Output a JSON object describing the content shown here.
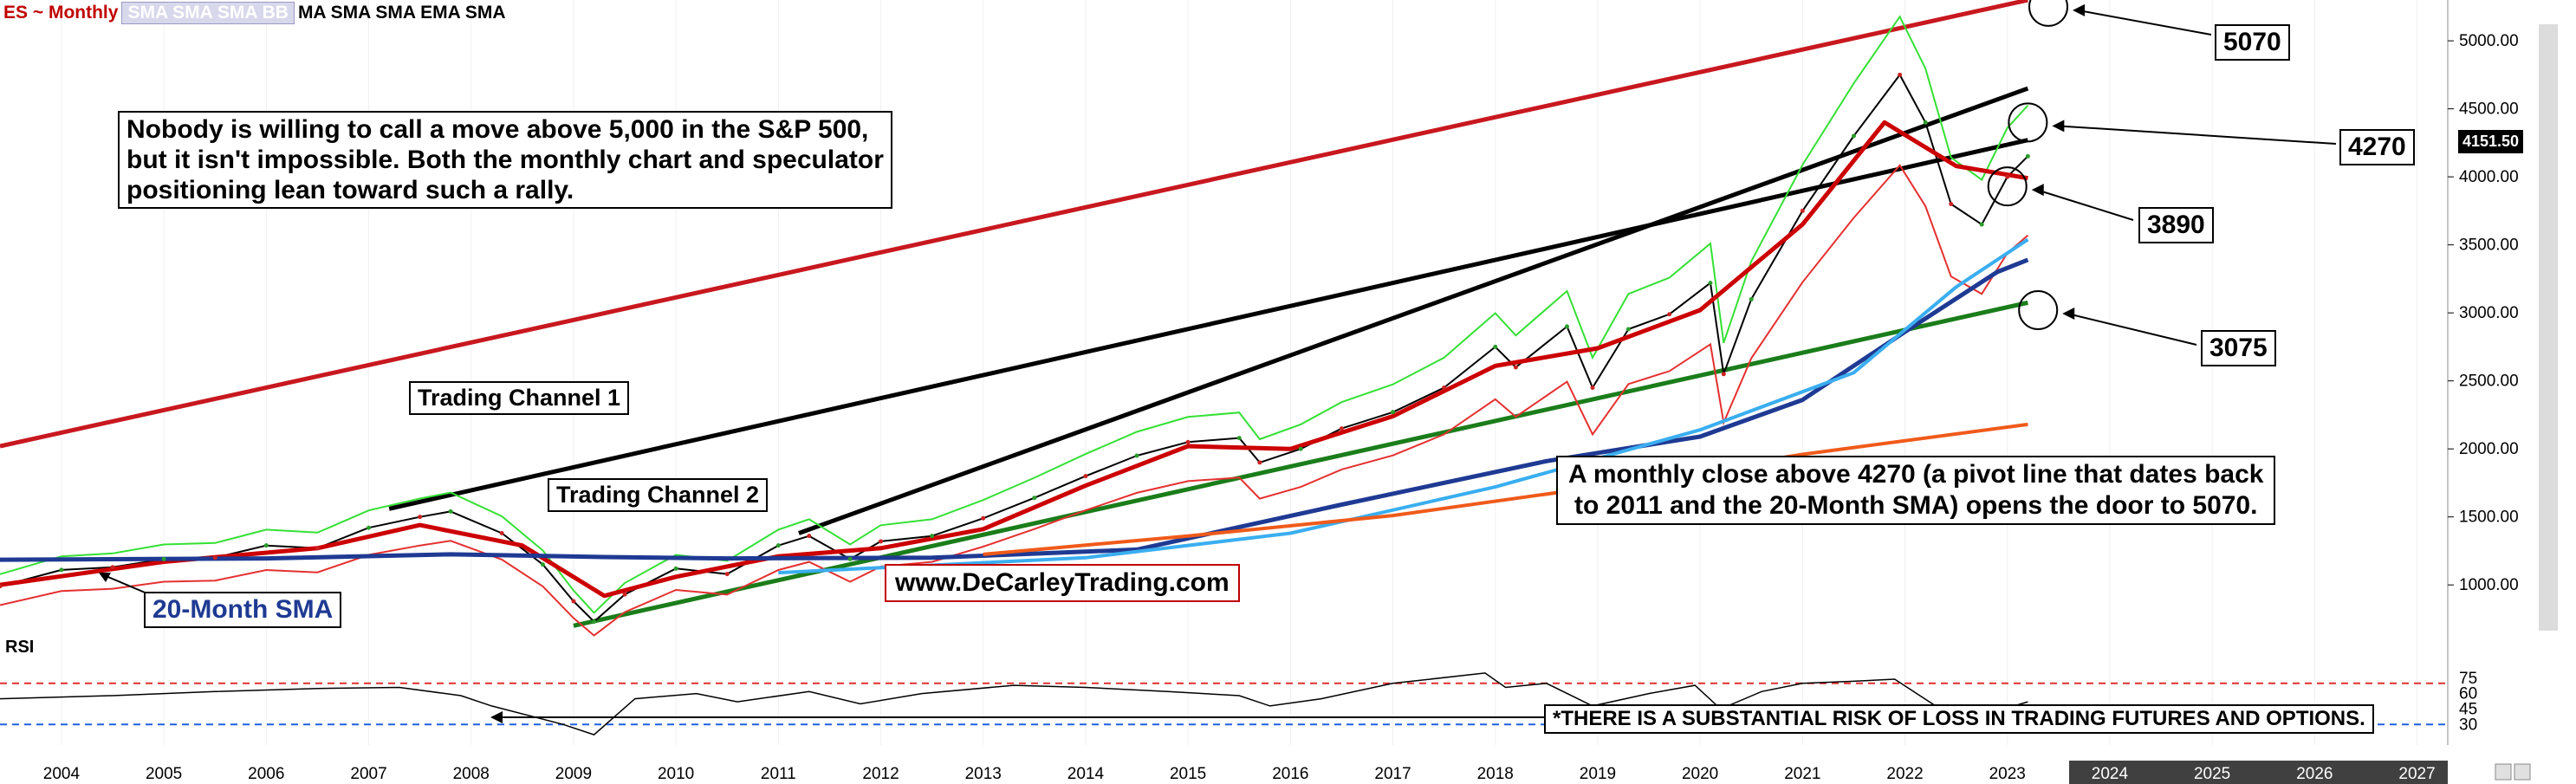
{
  "header": {
    "symbol": "ES ~ Monthly",
    "legend_faded": "SMA SMA SMA BB",
    "legend_indicators": "MA SMA SMA EMA SMA"
  },
  "annotations": {
    "intro": [
      "Nobody is willing to call a move above 5,000 in the S&P 500,",
      "but it isn't impossible. Both the monthly chart and speculator",
      "positioning lean toward such a rally."
    ],
    "channel1": "Trading Channel 1",
    "channel2": "Trading Channel 2",
    "target_5070": "5070",
    "target_4270": "4270",
    "target_3890": "3890",
    "target_3075": "3075",
    "pivot_note": [
      "A monthly close above 4270 (a pivot line that dates back",
      "to 2011 and the 20-Month SMA) opens the door to 5070."
    ],
    "website": "www.DeCarleyTrading.com",
    "sma_label": "20-Month SMA",
    "risk": "*THERE IS A SUBSTANTIAL RISK OF LOSS IN TRADING FUTURES AND OPTIONS.",
    "rsi": "RSI",
    "last_price": "4151.50"
  },
  "colors": {
    "symbol": "#c00000",
    "upper_red_line": "#c8181f",
    "black_lines": "#000000",
    "green_channel": "#1a7d1a",
    "orange_line": "#f05a1a",
    "sma20_blue": "#1f3a93",
    "light_blue": "#3aaef0",
    "green_band": "#35e035",
    "red_band": "#e53030",
    "background": "#ffffff"
  },
  "chart_data": {
    "type": "line",
    "title": "ES ~ Monthly",
    "price_axis": {
      "ylim": [
        600,
        5300
      ],
      "ticks": [
        1000,
        1500,
        2000,
        2500,
        3000,
        3500,
        4000,
        4500,
        5000
      ],
      "tick_labels": [
        "1000.00",
        "1500.00",
        "2000.00",
        "2500.00",
        "3000.00",
        "3500.00",
        "4000.00",
        "4500.00",
        "5000.00"
      ]
    },
    "time_axis": {
      "xlim": [
        2003.4,
        2027.3
      ],
      "years": [
        "2004",
        "2005",
        "2006",
        "2007",
        "2008",
        "2009",
        "2010",
        "2011",
        "2012",
        "2013",
        "2014",
        "2015",
        "2016",
        "2017",
        "2018",
        "2019",
        "2020",
        "2021",
        "2022",
        "2023",
        "2024",
        "2025",
        "2026",
        "2027"
      ]
    },
    "rsi_axis": {
      "ylim": [
        10,
        90
      ],
      "ticks": [
        30,
        45,
        60,
        75
      ],
      "tick_labels": [
        "30",
        "45",
        "60",
        "75"
      ],
      "upper": 70,
      "lower": 30
    },
    "series": [
      {
        "name": "ES ~ Monthly",
        "x": [
          2003.4,
          2004.0,
          2004.5,
          2005.0,
          2005.5,
          2006.0,
          2006.5,
          2007.0,
          2007.5,
          2007.8,
          2008.3,
          2008.7,
          2009.0,
          2009.2,
          2009.5,
          2010.0,
          2010.5,
          2011.0,
          2011.3,
          2011.7,
          2012.0,
          2012.5,
          2013.0,
          2013.5,
          2014.0,
          2014.5,
          2015.0,
          2015.5,
          2015.7,
          2016.1,
          2016.5,
          2017.0,
          2017.5,
          2018.0,
          2018.2,
          2018.7,
          2018.95,
          2019.3,
          2019.7,
          2020.1,
          2020.23,
          2020.5,
          2021.0,
          2021.5,
          2021.95,
          2022.2,
          2022.45,
          2022.75,
          2023.0,
          2023.2
        ],
        "y": [
          990,
          1110,
          1130,
          1190,
          1200,
          1290,
          1270,
          1420,
          1500,
          1540,
          1380,
          1150,
          880,
          730,
          930,
          1120,
          1080,
          1290,
          1360,
          1190,
          1320,
          1360,
          1490,
          1640,
          1800,
          1950,
          2050,
          2080,
          1900,
          2000,
          2150,
          2270,
          2450,
          2750,
          2600,
          2900,
          2450,
          2880,
          2990,
          3220,
          2550,
          3100,
          3750,
          4300,
          4750,
          4400,
          3800,
          3650,
          4000,
          4151.5
        ]
      },
      {
        "name": "",
        "x": [
          2003.4,
          2005.0,
          2006.5,
          2007.5,
          2008.5,
          2009.3,
          2010.0,
          2011.0,
          2012.0,
          2013.0,
          2014.0,
          2015.0,
          2016.0,
          2017.0,
          2018.0,
          2019.0,
          2020.0,
          2021.0,
          2021.8,
          2022.5,
          2023.2
        ],
        "y": [
          1000,
          1170,
          1270,
          1440,
          1290,
          920,
          1060,
          1210,
          1270,
          1410,
          1730,
          2020,
          2000,
          2240,
          2610,
          2740,
          3020,
          3650,
          4400,
          4080,
          3990
        ]
      },
      {
        "name": "",
        "x": [
          2003.4,
          2006.0,
          2007.8,
          2009.3,
          2010.5,
          2012.5,
          2014.5,
          2016.5,
          2018.5,
          2020.0,
          2021.0,
          2022.0,
          2022.9,
          2023.2
        ],
        "y": [
          1185,
          1195,
          1225,
          1205,
          1195,
          1200,
          1260,
          1590,
          1910,
          2090,
          2360,
          2860,
          3300,
          3390
        ]
      },
      {
        "name": "",
        "x": [
          2011.0,
          2014.0,
          2016.0,
          2018.0,
          2020.0,
          2021.5,
          2022.5,
          2023.2
        ],
        "y": [
          1090,
          1200,
          1380,
          1720,
          2140,
          2560,
          3190,
          3540
        ]
      },
      {
        "name": "",
        "x": [
          2013.0,
          2015.0,
          2017.0,
          2019.0,
          2021.0,
          2023.2
        ],
        "y": [
          1225,
          1360,
          1510,
          1720,
          1960,
          2180
        ]
      }
    ],
    "trendlines": [
      {
        "name": "",
        "x": [
          2003.4,
          2023.2
        ],
        "y": [
          2020,
          5300
        ]
      },
      {
        "name": "",
        "x": [
          2007.2,
          2023.2
        ],
        "y": [
          1560,
          4270
        ]
      },
      {
        "name": "",
        "x": [
          2011.2,
          2023.2
        ],
        "y": [
          1380,
          4650
        ]
      },
      {
        "name": "",
        "x": [
          2009.0,
          2023.2
        ],
        "y": [
          700,
          3075
        ]
      }
    ],
    "rsi": {
      "x": [
        2003.4,
        2004.5,
        2005.5,
        2006.5,
        2007.3,
        2007.9,
        2008.2,
        2008.9,
        2009.2,
        2009.6,
        2010.2,
        2010.6,
        2011.3,
        2011.8,
        2012.4,
        2013.3,
        2014.0,
        2014.8,
        2015.5,
        2015.8,
        2016.3,
        2017.0,
        2017.9,
        2018.1,
        2018.5,
        2018.95,
        2019.5,
        2019.95,
        2020.2,
        2020.6,
        2021.0,
        2021.5,
        2021.9,
        2022.3,
        2022.8,
        2023.2
      ],
      "y": [
        55,
        58,
        62,
        65,
        66,
        58,
        48,
        30,
        20,
        55,
        60,
        52,
        62,
        50,
        60,
        68,
        66,
        62,
        58,
        48,
        55,
        70,
        80,
        66,
        70,
        48,
        60,
        68,
        45,
        62,
        70,
        72,
        74,
        48,
        40,
        52
      ]
    },
    "xlabel": "",
    "ylabel": ""
  }
}
